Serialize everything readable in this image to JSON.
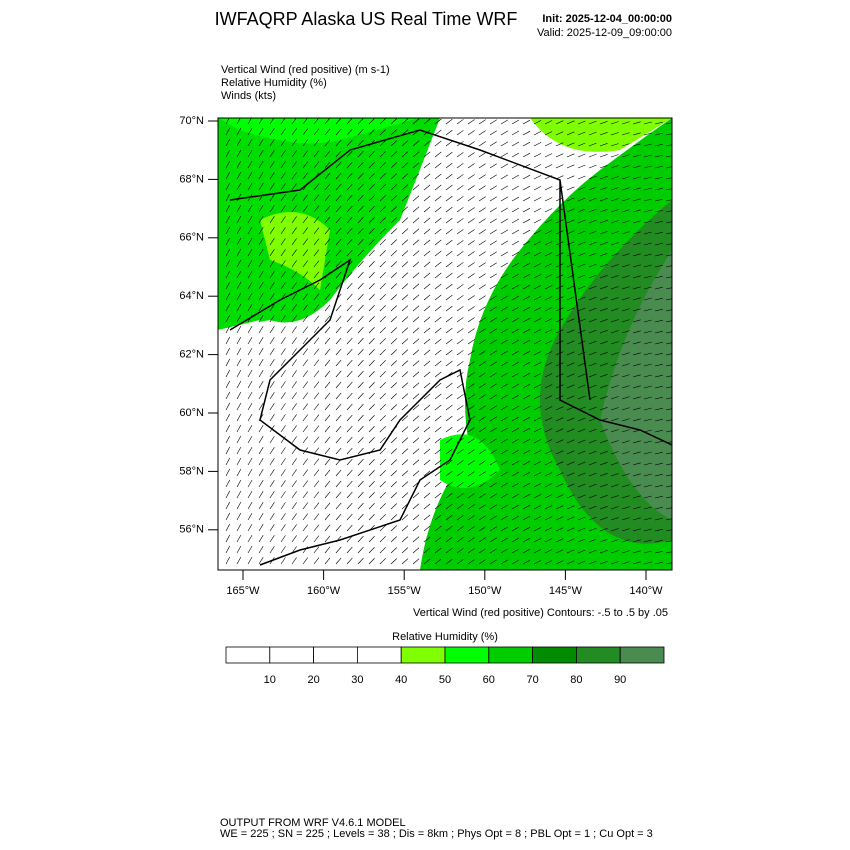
{
  "header": {
    "title": "IWFAQRP Alaska US Real Time WRF",
    "init": "Init: 2025-12-04_00:00:00",
    "valid": "Valid: 2025-12-09_09:00:00"
  },
  "fields": [
    "Vertical Wind (red positive)   (m s-1)",
    "Relative Humidity   (%)",
    "Winds   (kts)"
  ],
  "map": {
    "lat_ticks": [
      {
        "value": 70,
        "label": "70°N"
      },
      {
        "value": 68,
        "label": "68°N"
      },
      {
        "value": 66,
        "label": "66°N"
      },
      {
        "value": 64,
        "label": "64°N"
      },
      {
        "value": 62,
        "label": "62°N"
      },
      {
        "value": 60,
        "label": "60°N"
      },
      {
        "value": 58,
        "label": "58°N"
      },
      {
        "value": 56,
        "label": "56°N"
      }
    ],
    "lon_ticks": [
      {
        "value": -165,
        "label": "165°W"
      },
      {
        "value": -160,
        "label": "160°W"
      },
      {
        "value": -155,
        "label": "155°W"
      },
      {
        "value": -150,
        "label": "150°W"
      },
      {
        "value": -145,
        "label": "145°W"
      },
      {
        "value": -140,
        "label": "140°W"
      }
    ],
    "contour_note": "Vertical Wind (red positive) Contours: -.5 to .5 by .05"
  },
  "colorbar": {
    "title": "Relative Humidity  (%)",
    "ticks": [
      10,
      20,
      30,
      40,
      50,
      60,
      70,
      80,
      90
    ],
    "colors": [
      "#ffffff",
      "#ffffff",
      "#ffffff",
      "#ffffff",
      "#80ff00",
      "#00ff00",
      "#00cd00",
      "#008b00",
      "#228b22",
      "#4a8b50"
    ]
  },
  "footer": [
    "OUTPUT FROM WRF V4.6.1 MODEL",
    "WE = 225 ; SN = 225 ; Levels = 38 ; Dis = 8km ; Phys Opt = 8 ; PBL Opt = 1 ; Cu Opt = 3"
  ]
}
